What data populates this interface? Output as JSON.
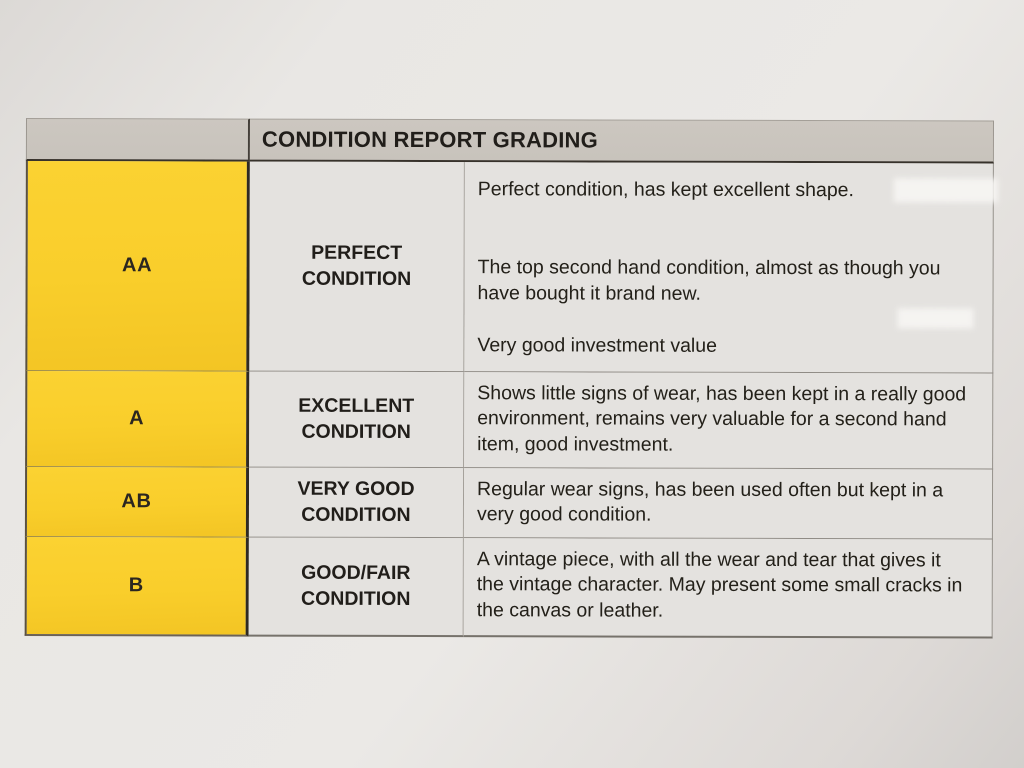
{
  "table": {
    "title": "CONDITION REPORT GRADING",
    "rows": [
      {
        "grade": "AA",
        "condition": "PERFECT CONDITION",
        "paragraphs": [
          "Perfect condition, has kept excellent shape.",
          "The top second hand condition, almost as though you have bought it brand new.",
          "Very good investment value"
        ]
      },
      {
        "grade": "A",
        "condition": "EXCELLENT CONDITION",
        "paragraphs": [
          "Shows little signs of wear, has been kept in a really good environment, remains very valuable for a second hand item, good investment."
        ]
      },
      {
        "grade": "AB",
        "condition": "VERY GOOD CONDITION",
        "paragraphs": [
          "Regular wear signs, has been used often but kept in a very good condition."
        ]
      },
      {
        "grade": "B",
        "condition": "GOOD/FAIR CONDITION",
        "paragraphs": [
          "A vintage piece, with all the wear and tear that gives it the vintage character. May present some small cracks in the canvas or leather."
        ]
      }
    ],
    "colors": {
      "grade_column_fill": "#f9ce2b",
      "header_fill": "#c8c3bc",
      "cell_fill": "#e4e2df",
      "paper": "#e9e7e4",
      "dark_border": "#37322b",
      "thin_border": "#8f8b85",
      "text": "#232019"
    }
  }
}
